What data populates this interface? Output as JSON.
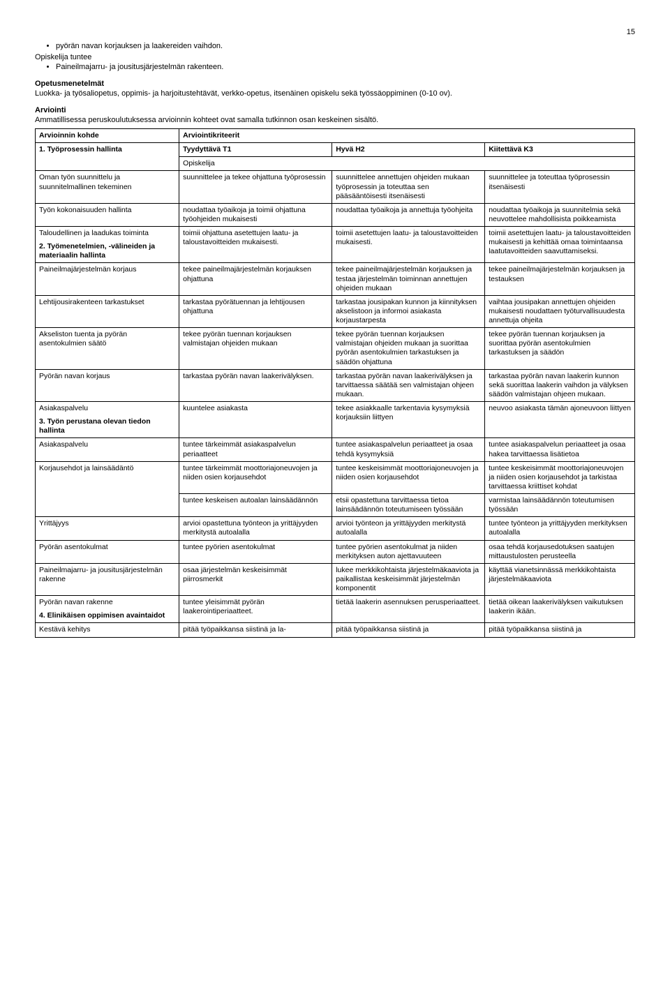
{
  "page_number": "15",
  "intro": {
    "bullet1": "pyörän navan korjauksen ja laakereiden vaihdon.",
    "line2": "Opiskelija tuntee",
    "bullet2": "Paineilmajarru- ja jousitusjärjestelmän rakenteen."
  },
  "opetus": {
    "heading": "Opetusmenetelmät",
    "text": "Luokka- ja työsaliopetus, oppimis- ja harjoitustehtävät, verkko-opetus, itsenäinen opiskelu sekä työssäoppiminen (0-10 ov)."
  },
  "arviointi": {
    "heading": "Arviointi",
    "text": "Ammatillisessa peruskoulutuksessa arvioinnin kohteet ovat samalla tutkinnon osan keskeinen sisältö."
  },
  "table": {
    "hdr_kohde": "Arvioinnin kohde",
    "hdr_kriteerit": "Arviointikriteerit",
    "row1": {
      "c1": "1. Työprosessin hallinta",
      "c2": "Tyydyttävä T1",
      "c3": "Hyvä H2",
      "c4": "Kiitettävä K3"
    },
    "opiskelija": "Opiskelija",
    "r_oman": {
      "c1": "Oman työn suunnittelu ja suunnitelmallinen tekeminen",
      "c2": "suunnittelee ja tekee ohjattuna työprosessin",
      "c3": "suunnittelee annettujen ohjeiden mukaan työprosessin ja toteuttaa sen pääsääntöisesti itsenäisesti",
      "c4": "suunnittelee ja toteuttaa työprosessin itsenäisesti"
    },
    "r_tyokok": {
      "c1": "Työn kokonaisuuden hallinta",
      "c2": "noudattaa työaikoja ja toimii ohjattuna työohjeiden mukaisesti",
      "c3": "noudattaa työaikoja ja annettuja työohjeita",
      "c4": "noudattaa työaikoja ja suunnitelmia sekä neuvottelee mahdollisista poikkeamista"
    },
    "r_taloud": {
      "c1": "Taloudellinen ja laadukas toiminta",
      "c2": "toimii ohjattuna asetettujen laatu- ja taloustavoitteiden mukaisesti.",
      "c3": "toimii asetettujen laatu- ja taloustavoitteiden mukaisesti.",
      "c4": "toimii asetettujen laatu- ja taloustavoitteiden mukaisesti ja kehittää omaa toimintaansa laatutavoitteiden saavuttamiseksi."
    },
    "r_tyomen": {
      "c1": "2. Työmenetelmien, -välineiden ja materiaalin hallinta"
    },
    "r_paineilma": {
      "c1": "Paineilmajärjestelmän korjaus",
      "c2": "tekee paineilmajärjestelmän korjauksen ohjattuna",
      "c3": "tekee paineilmajärjestelmän korjauksen ja testaa järjestelmän toiminnan annettujen ohjeiden mukaan",
      "c4": "tekee paineilmajärjestelmän korjauksen ja testauksen"
    },
    "r_lehti": {
      "c1": "Lehtijousirakenteen tarkastukset",
      "c2": "tarkastaa pyörätuennan ja lehtijousen ohjattuna",
      "c3": "tarkastaa jousipakan kunnon ja kiinnityksen akselistoon ja informoi asiakasta korjaustarpesta",
      "c4": "vaihtaa jousipakan annettujen ohjeiden mukaisesti noudattaen työturvallisuudesta annettuja ohjeita"
    },
    "r_akseli": {
      "c1": "Akseliston tuenta ja pyörän asentokulmien säätö",
      "c2": "tekee pyörän tuennan korjauksen valmistajan ohjeiden mukaan",
      "c3": "tekee pyörän tuennan korjauksen valmistajan ohjeiden mukaan ja suorittaa pyörän asentokulmien tarkastuksen ja säädön ohjattuna",
      "c4": "tekee pyörän tuennan korjauksen ja suorittaa pyörän asentokulmien tarkastuksen ja säädön"
    },
    "r_navankorjaus": {
      "c1": "Pyörän navan korjaus",
      "c2": "tarkastaa pyörän navan laakerivälyksen.",
      "c3": "tarkastaa pyörän navan laakerivälyksen ja tarvittaessa säätää sen valmistajan ohjeen mukaan.",
      "c4": "tarkastaa pyörän navan laakerin kunnon sekä suorittaa laakerin vaihdon ja välyksen säädön valmistajan ohjeen mukaan."
    },
    "r_asiakaspalv1": {
      "c1": "Asiakaspalvelu",
      "c2": "kuuntelee asiakasta",
      "c3": "tekee asiakkaalle tarkentavia kysymyksiä korjauksiin liittyen",
      "c4": "neuvoo asiakasta tämän ajoneuvoon liittyen"
    },
    "r_tyonperust": {
      "c1": "3. Työn perustana olevan tiedon hallinta"
    },
    "r_asiakaspalv2": {
      "c1": "Asiakaspalvelu",
      "c2": "tuntee tärkeimmät asiakaspalvelun periaatteet",
      "c3": "tuntee asiakaspalvelun periaatteet ja osaa tehdä kysymyksiä",
      "c4": "tuntee asiakaspalvelun periaatteet ja osaa hakea tarvittaessa lisätietoa"
    },
    "r_korjause": {
      "c1": "Korjausehdot ja lainsäädäntö",
      "c2": "tuntee tärkeimmät moottoriajoneuvojen ja niiden osien korjausehdot",
      "c3": "tuntee keskeisimmät moottoriajoneuvojen ja niiden osien korjausehdot",
      "c4": "tuntee keskeisimmät moottoriajoneuvojen ja niiden osien korjausehdot ja tarkistaa tarvittaessa kriittiset kohdat"
    },
    "r_lainsaad2": {
      "c2": "tuntee keskeisen autoalan lainsäädännön",
      "c3": "etsii opastettuna tarvittaessa tietoa lainsäädännön toteutumiseen työssään",
      "c4": "varmistaa lainsäädännön toteutumisen työssään"
    },
    "r_yrittajyys": {
      "c1": "Yrittäjyys",
      "c2": "arvioi opastettuna työnteon ja yrittäjyyden merkitystä autoalalla",
      "c3": "arvioi työnteon ja yrittäjyyden merkitystä autoalalla",
      "c4": "tuntee työnteon ja yrittäjyyden merkityksen autoalalla"
    },
    "r_asentokulmat": {
      "c1": "Pyörän asentokulmat",
      "c2": "tuntee pyörien asentokulmat",
      "c3": "tuntee pyörien asentokulmat ja niiden merkityksen auton ajettavuuteen",
      "c4": "osaa tehdä korjausedotuksen saatujen mittaustulosten perusteella"
    },
    "r_jousitus": {
      "c1": "Paineilmajarru- ja jousitusjärjestelmän rakenne",
      "c2": "osaa järjestelmän keskeisimmät piirrosmerkit",
      "c3": "lukee merkkikohtaista järjestelmäkaaviota ja paikallistaa keskeisimmät järjestelmän komponentit",
      "c4": "käyttää vianetsinnässä merkkikohtaista järjestelmäkaaviota"
    },
    "r_navanrakenne": {
      "c1": "Pyörän navan rakenne",
      "c2": "tuntee yleisimmät pyörän laakerointiperiaatteet.",
      "c3": "tietää laakerin asennuksen perusperiaatteet.",
      "c4": "tietää oikean laakerivälyksen vaikutuksen laakerin ikään."
    },
    "r_elinkainen": {
      "c1": "4. Elinikäisen oppimisen avaintaidot"
    },
    "r_kestava": {
      "c1": "Kestävä kehitys",
      "c2": "pitää työpaikkansa siistinä ja la-",
      "c3": "pitää työpaikkansa siistinä ja",
      "c4": "pitää työpaikkansa siistinä ja"
    }
  }
}
